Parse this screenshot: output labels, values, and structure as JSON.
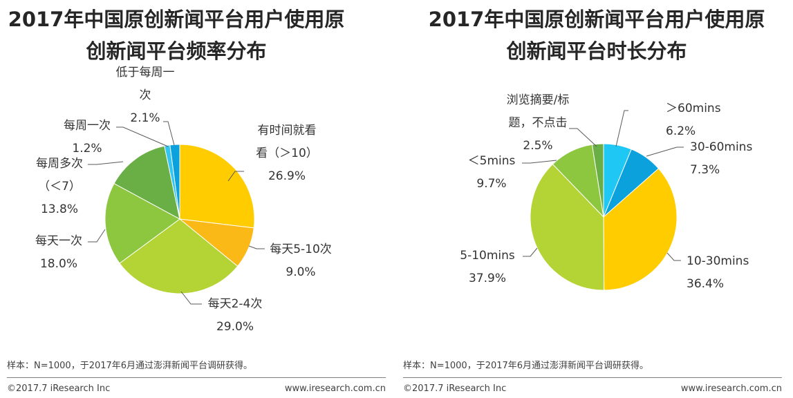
{
  "chart_data": [
    {
      "type": "pie",
      "title_lines": [
        "2017年中国原创新闻平台用户使用原",
        "创新闻平台频率分布"
      ],
      "slices": [
        {
          "label_lines": [
            "有时间就看",
            "看（＞10）"
          ],
          "value_text": "26.9%",
          "value": 26.9,
          "color": "#FFCC00"
        },
        {
          "label_lines": [
            "每天5-10次"
          ],
          "value_text": "9.0%",
          "value": 9.0,
          "color": "#FBB917"
        },
        {
          "label_lines": [
            "每天2-4次"
          ],
          "value_text": "29.0%",
          "value": 29.0,
          "color": "#B4D334"
        },
        {
          "label_lines": [
            "每天一次"
          ],
          "value_text": "18.0%",
          "value": 18.0,
          "color": "#8DC63F"
        },
        {
          "label_lines": [
            "每周多次",
            "（＜7）"
          ],
          "value_text": "13.8%",
          "value": 13.8,
          "color": "#6AAF45"
        },
        {
          "label_lines": [
            "每周一次"
          ],
          "value_text": "1.2%",
          "value": 1.2,
          "color": "#33C4F0"
        },
        {
          "label_lines": [
            "低于每周一",
            "次"
          ],
          "value_text": "2.1%",
          "value": 2.1,
          "color": "#0AA1DD"
        }
      ],
      "note": "样本：N=1000，于2017年6月通过澎湃新闻平台调研获得。",
      "footer_left": "©2017.7 iResearch Inc",
      "footer_right": "www.iresearch.com.cn"
    },
    {
      "type": "pie",
      "title_lines": [
        "2017年中国原创新闻平台用户使用原",
        "创新闻平台时长分布"
      ],
      "slices": [
        {
          "label_lines": [
            "＞60mins"
          ],
          "value_text": "6.2%",
          "value": 6.2,
          "color": "#1FC8F4"
        },
        {
          "label_lines": [
            "30-60mins"
          ],
          "value_text": "7.3%",
          "value": 7.3,
          "color": "#0AA1DD"
        },
        {
          "label_lines": [
            "10-30mins"
          ],
          "value_text": "36.4%",
          "value": 36.4,
          "color": "#FFCC00"
        },
        {
          "label_lines": [
            "5-10mins"
          ],
          "value_text": "37.9%",
          "value": 37.9,
          "color": "#B4D334"
        },
        {
          "label_lines": [
            "＜5mins"
          ],
          "value_text": "9.7%",
          "value": 9.7,
          "color": "#8DC63F"
        },
        {
          "label_lines": [
            "浏览摘要/标",
            "题，不点击"
          ],
          "value_text": "2.5%",
          "value": 2.5,
          "color": "#6AAF45"
        }
      ],
      "note": "样本：N=1000，于2017年6月通过澎湃新闻平台调研获得。",
      "footer_left": "©2017.7 iResearch Inc",
      "footer_right": "www.iresearch.com.cn"
    }
  ]
}
